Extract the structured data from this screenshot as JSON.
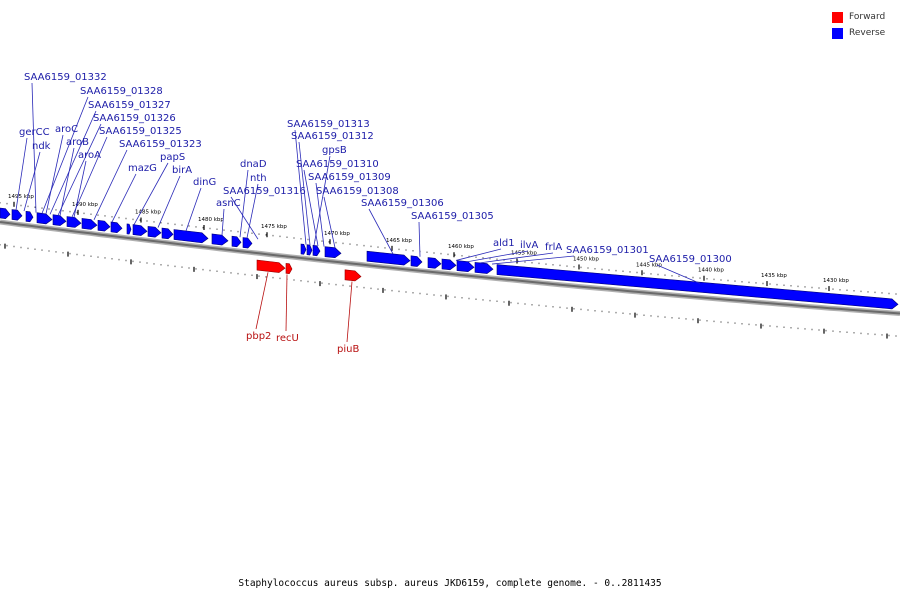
{
  "legend": [
    {
      "label": "Forward",
      "color": "#ff0000"
    },
    {
      "label": "Reverse",
      "color": "#0000ff"
    }
  ],
  "caption": "Staphylococcus aureus subsp. aureus JKD6159, complete genome. - 0..2811435",
  "ticks": [
    "1495 kbp",
    "1490 kbp",
    "1485 kbp",
    "1480 kbp",
    "1475 kbp",
    "1470 kbp",
    "1465 kbp",
    "1460 kbp",
    "1455 kbp",
    "1450 kbp",
    "1445 kbp",
    "1440 kbp",
    "1435 kbp",
    "1430 kbp"
  ],
  "reverse_labels": [
    "SAA6159_01332",
    "SAA6159_01328",
    "SAA6159_01327",
    "SAA6159_01326",
    "SAA6159_01325",
    "SAA6159_01323",
    "gerCC",
    "ndk",
    "aroC",
    "aroB",
    "aroA",
    "mazG",
    "papS",
    "birA",
    "dinG",
    "dnaD",
    "nth",
    "asnC",
    "SAA6159_01316",
    "SAA6159_01313",
    "SAA6159_01312",
    "gpsB",
    "SAA6159_01310",
    "SAA6159_01309",
    "SAA6159_01308",
    "SAA6159_01306",
    "SAA6159_01305",
    "ald1",
    "ilvA",
    "frlA",
    "SAA6159_01301",
    "SAA6159_01300"
  ],
  "forward_labels": [
    "pbp2",
    "recU",
    "piuB"
  ],
  "colors": {
    "forward": "#ff0000",
    "reverse": "#0000ff",
    "reverse_label": "#1c1ca8",
    "forward_label": "#b81010"
  }
}
